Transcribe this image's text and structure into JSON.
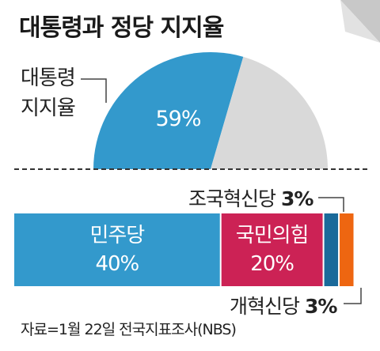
{
  "title": "대통령과 정당 지지율",
  "footnote": "자료=1월 22일 전국지표조사(NBS)",
  "gauge": {
    "label_line1": "대통령",
    "label_line2": "지지율",
    "value": 59,
    "value_text": "59%",
    "fill_color": "#3399cc",
    "rest_color": "#d9d9d9"
  },
  "chart_data": [
    {
      "type": "pie",
      "title": "",
      "label": "대통령 지지율",
      "slices": [
        {
          "name": "대통령 지지율",
          "value": 59,
          "color": "#3399cc"
        },
        {
          "name": "",
          "value": 41,
          "color": "#d9d9d9"
        }
      ]
    },
    {
      "type": "bar",
      "stacked": true,
      "orientation": "horizontal",
      "series": [
        {
          "name": "민주당",
          "value": 40,
          "value_text": "40%",
          "color": "#3399cc"
        },
        {
          "name": "국민의힘",
          "value": 20,
          "value_text": "20%",
          "color": "#cc2255"
        },
        {
          "name": "조국혁신당",
          "value": 3,
          "value_text": "3%",
          "color": "#1a6a9a"
        },
        {
          "name": "개혁신당",
          "value": 3,
          "value_text": "3%",
          "color": "#ee6611"
        }
      ]
    }
  ]
}
